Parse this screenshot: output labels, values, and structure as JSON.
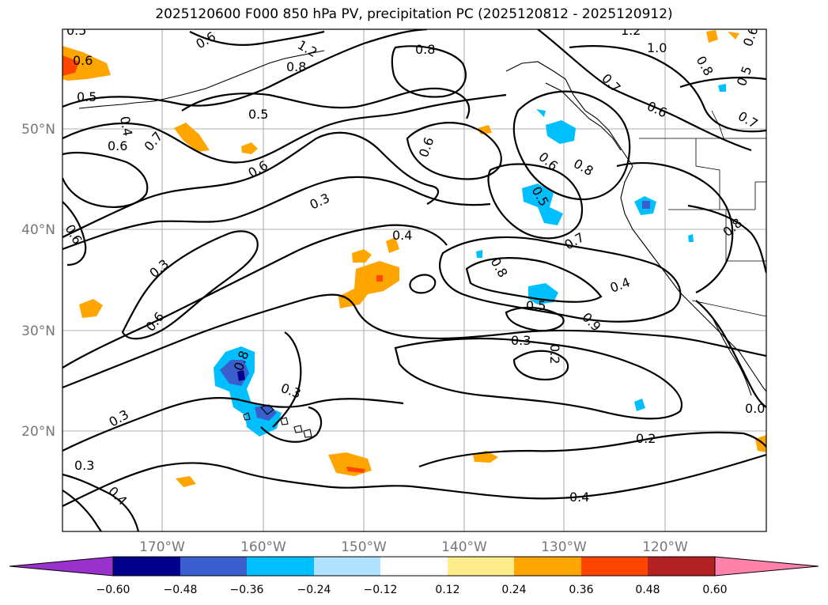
{
  "title": "2025120600 F000 850 hPa PV, precipitation PC (2025120812 - 2025120912)",
  "map": {
    "lat_labels": [
      "50°N",
      "40°N",
      "30°N",
      "20°N"
    ],
    "lon_labels": [
      "170°W",
      "160°W",
      "150°W",
      "140°W",
      "130°W",
      "120°W"
    ]
  },
  "contour_labels": [
    "0.5",
    "0.6",
    "1.2",
    "1.0",
    "0.8",
    "0.8",
    "0.5",
    "0.8",
    "0.6",
    "0.5",
    "0.7",
    "1.2",
    "0.6",
    "0.5",
    "0.6",
    "0.7",
    "0.8",
    "0.6",
    "0.7",
    "0.4",
    "0.6",
    "0.3",
    "0.6",
    "0.6",
    "0.5",
    "0.7",
    "0.4",
    "0.8",
    "0.6",
    "0.8",
    "0.4",
    "0.3",
    "0.5",
    "0.9",
    "0.6",
    "0.3",
    "0.2",
    "0.8",
    "0.3",
    "0.3",
    "0.2",
    "0.3",
    "0.4",
    "0.4",
    "0.0"
  ],
  "colorbar": {
    "ticks": [
      "−0.60",
      "−0.48",
      "−0.36",
      "−0.24",
      "−0.12",
      "0.12",
      "0.24",
      "0.36",
      "0.48",
      "0.60"
    ],
    "colors": [
      "#9932cc",
      "#00008b",
      "#3a5fcd",
      "#00bfff",
      "#b0e2ff",
      "#ffffff",
      "#ffec8b",
      "#ffa500",
      "#ff4500",
      "#b22222",
      "#ff82ab"
    ]
  },
  "colors": {
    "precip_orange": "#ffa500",
    "precip_red": "#ff4500",
    "precip_lightblue": "#00bfff",
    "precip_blue": "#3a5fcd",
    "precip_darkblue": "#00008b"
  }
}
